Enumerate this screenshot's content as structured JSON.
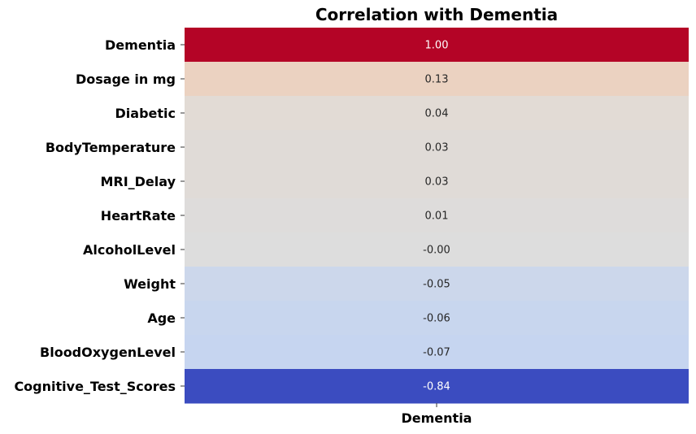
{
  "chart_data": {
    "type": "heatmap",
    "title": "Correlation with Dementia",
    "columns": [
      "Dementia"
    ],
    "rows": [
      "Dementia",
      "Dosage in mg",
      "Diabetic",
      "BodyTemperature",
      "MRI_Delay",
      "HeartRate",
      "AlcoholLevel",
      "Weight",
      "Age",
      "BloodOxygenLevel",
      "Cognitive_Test_Scores"
    ],
    "values": [
      1.0,
      0.13,
      0.04,
      0.03,
      0.03,
      0.01,
      -0.0,
      -0.05,
      -0.06,
      -0.07,
      -0.84
    ],
    "value_labels": [
      "1.00",
      "0.13",
      "0.04",
      "0.03",
      "0.03",
      "0.01",
      "-0.00",
      "-0.05",
      "-0.06",
      "-0.07",
      "-0.84"
    ],
    "colormap": "coolwarm",
    "legend": "none",
    "grid": false
  }
}
